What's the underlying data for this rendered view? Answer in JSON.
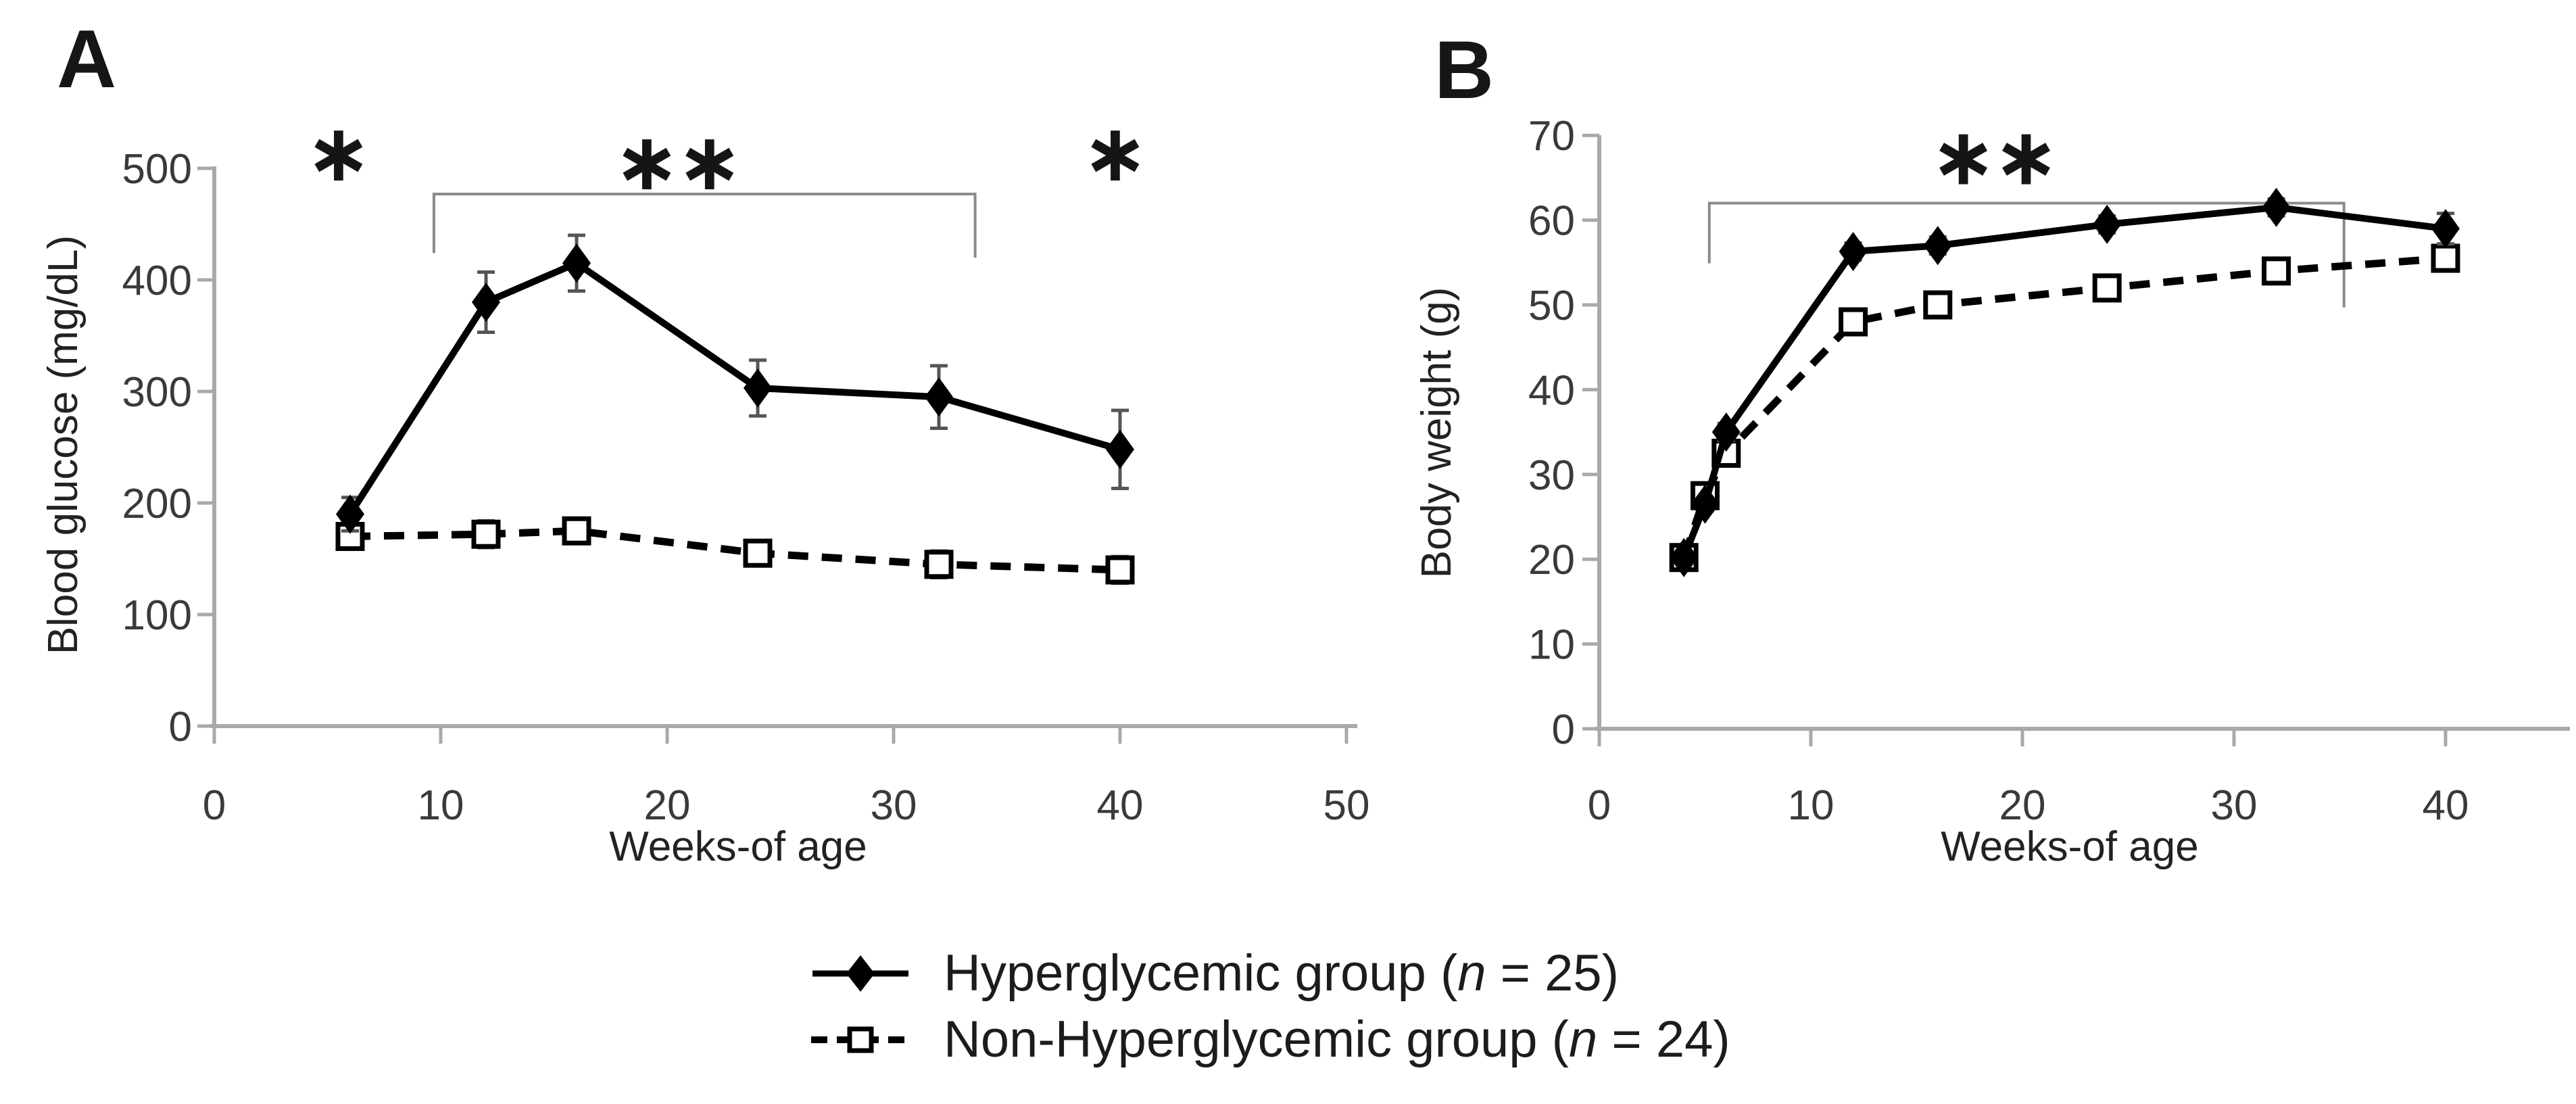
{
  "figure_background": "#ffffff",
  "colors": {
    "series": "#000000",
    "axis": "#a9a9a9",
    "bracket": "#8a8a8a",
    "tick_label": "#3a3a3a",
    "error_bar": "#555555",
    "text": "#222222"
  },
  "legend": {
    "items": [
      {
        "marker": "filled-diamond-solid-line",
        "label_prefix": "Hyperglycemic group (",
        "n_symbol": "n",
        "label_suffix": " = 25)",
        "full_label": "Hyperglycemic group (n = 25)"
      },
      {
        "marker": "open-square-dashed-line",
        "label_prefix": "Non-Hyperglycemic group (",
        "n_symbol": "n",
        "label_suffix": " = 24)",
        "full_label": "Non-Hyperglycemic group (n = 24)"
      }
    ]
  },
  "chart_data": [
    {
      "type": "line",
      "panel_label": "A",
      "xlabel": "Weeks-of age",
      "ylabel": "Blood glucose (mg/dL)",
      "xlim": [
        0,
        50
      ],
      "ylim": [
        0,
        500
      ],
      "x_ticks": [
        0,
        10,
        20,
        30,
        40,
        50
      ],
      "y_ticks": [
        0,
        100,
        200,
        300,
        400,
        500
      ],
      "grid": false,
      "x": [
        6,
        12,
        16,
        24,
        32,
        40
      ],
      "series": [
        {
          "name": "Hyperglycemic group",
          "marker": "filled-diamond",
          "line": "solid",
          "values": [
            190,
            380,
            415,
            303,
            295,
            248
          ],
          "errors": [
            15,
            27,
            25,
            25,
            28,
            35
          ]
        },
        {
          "name": "Non-Hyperglycemic group",
          "marker": "open-square",
          "line": "dashed",
          "values": [
            170,
            172,
            175,
            155,
            145,
            140
          ],
          "errors": [
            10,
            12,
            10,
            10,
            12,
            12
          ]
        }
      ],
      "sig_marks": [
        {
          "symbol": "∗",
          "x": 5.4,
          "y": 514
        },
        {
          "symbol": "∗∗",
          "x": 20.4,
          "y": 506
        },
        {
          "symbol": "∗",
          "x": 39.7,
          "y": 514
        }
      ],
      "brackets": [
        {
          "x1": 9.7,
          "x2": 33.6,
          "y": 477,
          "leg1_y": 424,
          "leg2_y": 420
        }
      ]
    },
    {
      "type": "line",
      "panel_label": "B",
      "xlabel": "Weeks-of age",
      "ylabel": "Body weight (g)",
      "xlim": [
        0,
        45
      ],
      "ylim": [
        0,
        70
      ],
      "x_ticks": [
        0,
        10,
        20,
        30,
        40
      ],
      "y_ticks": [
        0,
        10,
        20,
        30,
        40,
        50,
        60,
        70
      ],
      "grid": false,
      "x": [
        4,
        5,
        6,
        12,
        16,
        24,
        32,
        40
      ],
      "series": [
        {
          "name": "Hyperglycemic group",
          "marker": "filled-diamond",
          "line": "solid",
          "values": [
            20.2,
            26.5,
            35,
            56.3,
            57,
            59.5,
            61.5,
            59
          ],
          "errors": [
            0.8,
            0.8,
            1,
            1,
            1,
            1,
            1,
            1.8
          ]
        },
        {
          "name": "Non-Hyperglycemic group",
          "marker": "open-square",
          "line": "dashed",
          "values": [
            20.2,
            27.5,
            32.5,
            48,
            50,
            52,
            54,
            55.5
          ],
          "errors": [
            0.8,
            0.8,
            1,
            1,
            1,
            1,
            1,
            1.2
          ]
        }
      ],
      "sig_marks": [
        {
          "symbol": "∗∗",
          "x": 18.6,
          "y": 67.5
        }
      ],
      "brackets": [
        {
          "x1": 5.2,
          "x2": 35.2,
          "y": 62,
          "leg1_y": 54.9,
          "leg2_y": 49.7
        }
      ]
    }
  ]
}
